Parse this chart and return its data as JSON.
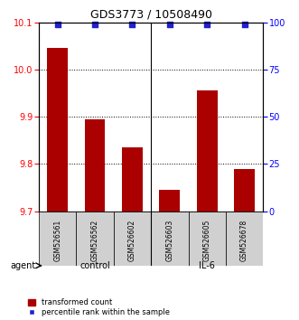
{
  "title": "GDS3773 / 10508490",
  "samples": [
    "GSM526561",
    "GSM526562",
    "GSM526602",
    "GSM526603",
    "GSM526605",
    "GSM526678"
  ],
  "bar_values": [
    10.045,
    9.895,
    9.835,
    9.745,
    9.955,
    9.79
  ],
  "percentile_values": [
    99,
    99,
    99,
    99,
    99,
    99
  ],
  "bar_color": "#AA0000",
  "percentile_color": "#2222CC",
  "ylim_left": [
    9.7,
    10.1
  ],
  "ylim_right": [
    0,
    100
  ],
  "yticks_left": [
    9.7,
    9.8,
    9.9,
    10.0,
    10.1
  ],
  "yticks_right": [
    0,
    25,
    50,
    75,
    100
  ],
  "groups": [
    {
      "label": "control",
      "samples": [
        0,
        1,
        2
      ],
      "color": "#BBFFBB"
    },
    {
      "label": "IL-6",
      "samples": [
        3,
        4,
        5
      ],
      "color": "#33DD33"
    }
  ],
  "agent_label": "agent",
  "legend_bar_label": "transformed count",
  "legend_pct_label": "percentile rank within the sample",
  "bar_width": 0.55
}
